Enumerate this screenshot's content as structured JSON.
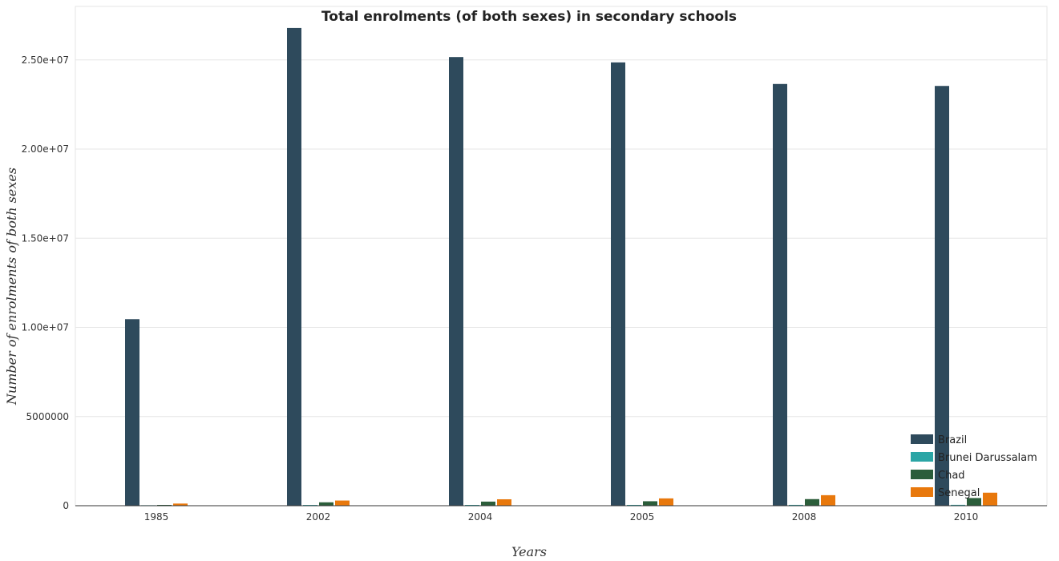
{
  "chart_data": {
    "type": "bar",
    "title": "Total enrolments (of both sexes) in secondary schools",
    "xlabel": "Years",
    "ylabel": "Number of enrolments of both sexes",
    "categories": [
      "1985",
      "2002",
      "2004",
      "2005",
      "2008",
      "2010"
    ],
    "ylim": [
      0,
      28000000
    ],
    "yticks": [
      0,
      5000000,
      10000000,
      15000000,
      20000000,
      25000000
    ],
    "ytick_labels": [
      "0",
      "5000000",
      "1.00e+07",
      "1.50e+07",
      "2.00e+07",
      "2.50e+07"
    ],
    "grid": true,
    "legend_position": "bottom-right",
    "series": [
      {
        "name": "Brazil",
        "color": "#2e4a5c",
        "values": [
          10460000,
          26790000,
          25160000,
          24860000,
          23650000,
          23540000
        ]
      },
      {
        "name": "Brunei Darussalam",
        "color": "#2aa5a5",
        "values": [
          28000,
          43000,
          45000,
          46000,
          48000,
          50000
        ]
      },
      {
        "name": "Chad",
        "color": "#2b5d3a",
        "values": [
          45000,
          190000,
          230000,
          250000,
          370000,
          430000
        ]
      },
      {
        "name": "Senegal",
        "color": "#e8780c",
        "values": [
          120000,
          290000,
          360000,
          410000,
          590000,
          730000
        ]
      }
    ]
  }
}
